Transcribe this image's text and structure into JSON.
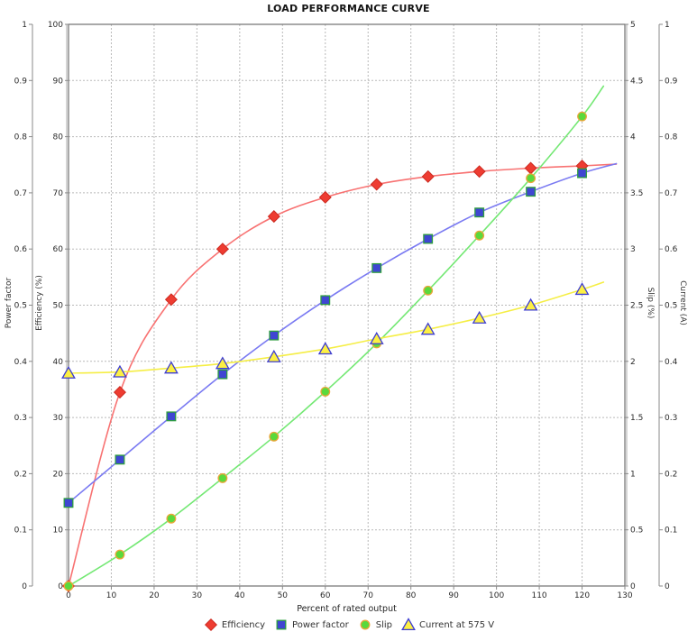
{
  "chart_data": {
    "type": "line",
    "title": "LOAD PERFORMANCE CURVE",
    "xlabel": "Percent of rated output",
    "grid": true,
    "legend_position": "bottom",
    "x": [
      0,
      12,
      24,
      36,
      48,
      60,
      72,
      84,
      96,
      108,
      120
    ],
    "axes": {
      "x": {
        "label": "Percent of rated output",
        "min": 0,
        "max": 130,
        "step": 10
      },
      "power_factor": {
        "label": "Power factor",
        "min": 0,
        "max": 1,
        "step": 0.1
      },
      "efficiency": {
        "label": "Efficiency (%)",
        "min": 0,
        "max": 100,
        "step": 10
      },
      "slip": {
        "label": "Slip (%)",
        "min": 0,
        "max": 5,
        "step": 0.5
      },
      "current": {
        "label": "Current (A)",
        "min": 0,
        "max": 1,
        "step": 0.1
      }
    },
    "series": [
      {
        "name": "Efficiency",
        "axis": "efficiency",
        "scale_to_percent": 1,
        "marker": "diamond",
        "line_color": "#f87272",
        "marker_fill": "#ee3c31",
        "marker_edge": "#cc2a20",
        "values": [
          0,
          34.5,
          51.0,
          60.0,
          65.8,
          69.2,
          71.5,
          72.9,
          73.8,
          74.4,
          74.8
        ],
        "trend_end": {
          "x": 128,
          "value": 75.1
        }
      },
      {
        "name": "Power factor",
        "axis": "power_factor",
        "scale_to_percent": 100,
        "marker": "square",
        "line_color": "#7a7af2",
        "marker_fill": "#3f46d2",
        "marker_edge": "#2f9f3f",
        "values": [
          0.148,
          0.225,
          0.302,
          0.377,
          0.446,
          0.509,
          0.566,
          0.618,
          0.665,
          0.702,
          0.735
        ],
        "trend_end": {
          "x": 128,
          "value": 0.752
        }
      },
      {
        "name": "Slip",
        "axis": "slip",
        "scale_to_percent": 20,
        "marker": "circle",
        "line_color": "#74e874",
        "marker_fill": "#5ad93c",
        "marker_edge": "#eca53a",
        "values": [
          0,
          0.28,
          0.6,
          0.96,
          1.33,
          1.73,
          2.16,
          2.63,
          3.12,
          3.63,
          4.18
        ],
        "trend_end": {
          "x": 125,
          "value": 4.45
        }
      },
      {
        "name": "Current at 575 V",
        "axis": "current",
        "scale_to_percent": 100,
        "marker": "triangle",
        "line_color": "#f5ee45",
        "marker_fill": "#fdf043",
        "marker_edge": "#3c3cd2",
        "values": [
          0.379,
          0.381,
          0.388,
          0.396,
          0.408,
          0.422,
          0.44,
          0.457,
          0.477,
          0.5,
          0.528
        ],
        "trend_end": {
          "x": 125,
          "value": 0.541
        }
      }
    ],
    "colors": {
      "grid": "#b9b9b9",
      "border": "#707070",
      "axis": "#8a8a8a",
      "tick_text": "#2a2a2a"
    }
  }
}
